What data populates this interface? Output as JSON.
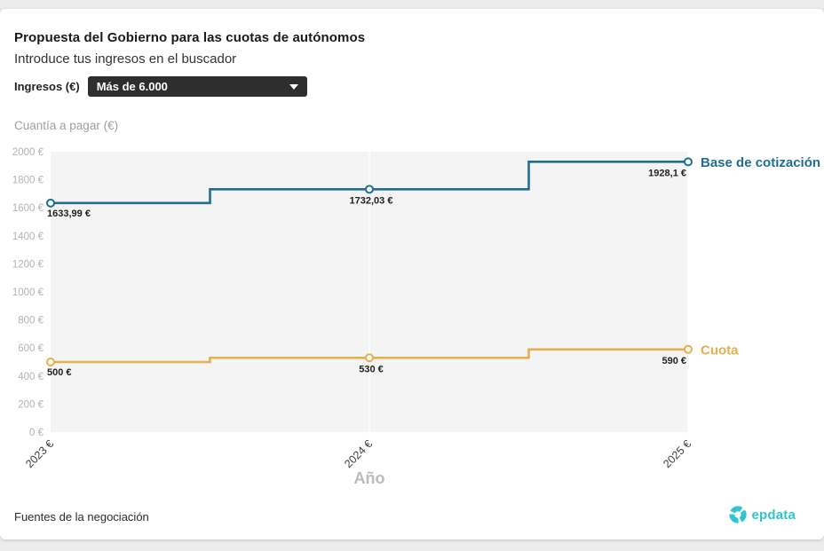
{
  "page": {
    "background": "#ececec",
    "card_background": "#ffffff"
  },
  "header": {
    "title": "Propuesta del Gobierno para las cuotas de autónomos",
    "subtitle": "Introduce tus ingresos en el buscador",
    "filter_label": "Ingresos (€)",
    "dropdown_value": "Más de 6.000"
  },
  "footer": {
    "source": "Fuentes de la negociación",
    "brand": "epdata",
    "brand_color": "#2fc5cf"
  },
  "chart_data": {
    "type": "line",
    "step_interpolation": "center",
    "ylabel": "Cuantía a pagar (€)",
    "xlabel": "Año",
    "x": [
      2023,
      2024,
      2025
    ],
    "x_tick_labels": [
      "2023 €",
      "2024 €",
      "2025 €"
    ],
    "y_tick_labels": [
      "0 €",
      "200 €",
      "400 €",
      "600 €",
      "800 €",
      "1000 €",
      "1200 €",
      "1400 €",
      "1600 €",
      "1800 €",
      "2000 €"
    ],
    "ylim": [
      0,
      2000
    ],
    "y_tick_step": 200,
    "grid": "vertical-faint",
    "plot_background": "#f4f4f4",
    "legend_position": "right-of-line-end",
    "series": [
      {
        "name": "Base de cotización",
        "color": "#1f6e93",
        "values": [
          1633.99,
          1732.03,
          1928.1
        ],
        "point_labels": [
          "1633,99 €",
          "1732,03 €",
          "1928,1 €"
        ]
      },
      {
        "name": "Cuota",
        "color": "#e5af4c",
        "values": [
          500,
          530,
          590
        ],
        "point_labels": [
          "500 €",
          "530 €",
          "590 €"
        ]
      }
    ]
  }
}
